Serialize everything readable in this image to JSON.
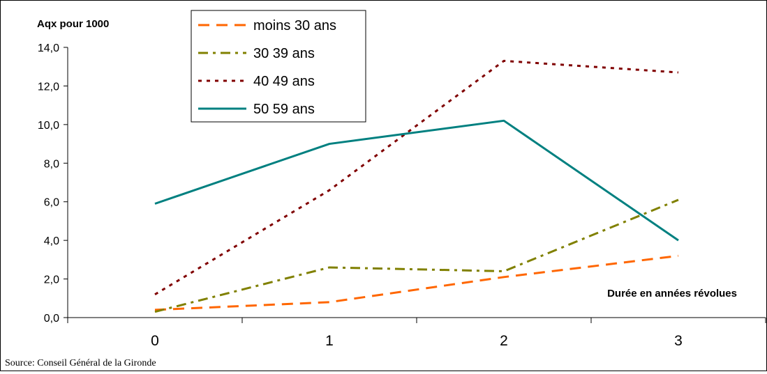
{
  "chart_data": {
    "type": "line",
    "ylabel": "Aqx pour 1000",
    "xlabel": "Durée en années révolues",
    "x": [
      0,
      1,
      2,
      3
    ],
    "x_tick_labels": [
      "0",
      "1",
      "2",
      "3"
    ],
    "ylim": [
      0,
      14
    ],
    "y_tick_labels": [
      "0,0",
      "2,0",
      "4,0",
      "6,0",
      "8,0",
      "10,0",
      "12,0",
      "14,0"
    ],
    "grid": false,
    "legend_position": "top-left",
    "series": [
      {
        "name": "moins 30 ans",
        "values": [
          0.4,
          0.8,
          2.1,
          3.2
        ],
        "color": "#ff6600",
        "style": "dashed"
      },
      {
        "name": "30 39 ans",
        "values": [
          0.3,
          2.6,
          2.4,
          6.1
        ],
        "color": "#808000",
        "style": "dash-dot"
      },
      {
        "name": "40 49 ans",
        "values": [
          1.2,
          6.6,
          13.3,
          12.7
        ],
        "color": "#800000",
        "style": "dotted"
      },
      {
        "name": "50 59 ans",
        "values": [
          5.9,
          9.0,
          10.2,
          4.0
        ],
        "color": "#008080",
        "style": "solid"
      }
    ]
  },
  "source": "Source: Conseil Général de la Gironde"
}
